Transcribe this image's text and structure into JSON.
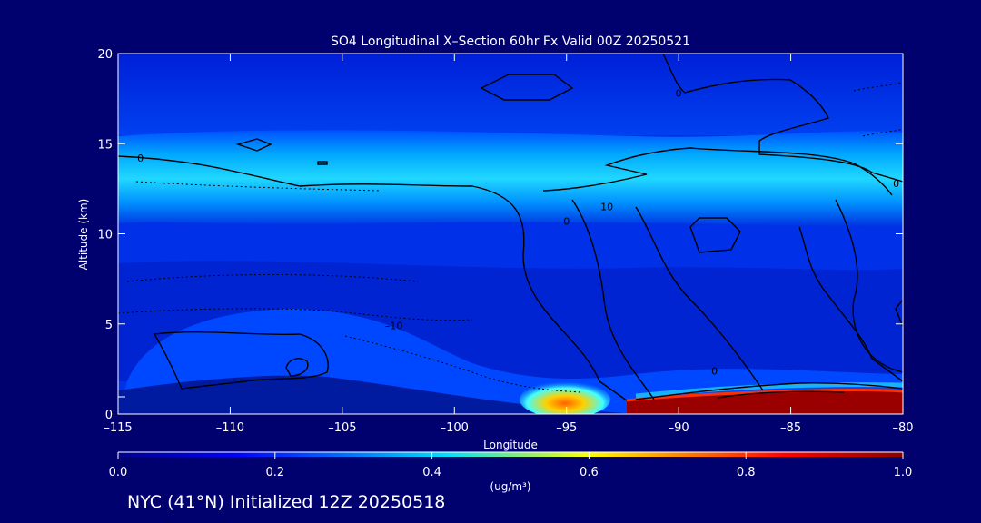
{
  "chart_data": {
    "type": "heatmap",
    "title": "SO4 Longitudinal X–Section 60hr  Fx Valid 00Z 20250521",
    "xlabel": "Longitude",
    "ylabel": "Altitude (km)",
    "xlim": [
      -115,
      -80
    ],
    "ylim": [
      0,
      20
    ],
    "x_ticks": [
      -115,
      -110,
      -105,
      -100,
      -95,
      -90,
      -85,
      -80
    ],
    "x_tick_labels": [
      "–115",
      "–110",
      "–105",
      "–100",
      "–95",
      "–90",
      "–85",
      "–80"
    ],
    "y_ticks": [
      0,
      5,
      10,
      15,
      20
    ],
    "y_tick_labels": [
      "0",
      "5",
      "10",
      "15",
      "20"
    ],
    "colorbar": {
      "min": 0.0,
      "max": 1.0,
      "ticks": [
        0.0,
        0.2,
        0.4,
        0.6,
        0.8,
        1.0
      ],
      "tick_labels": [
        "0.0",
        "0.2",
        "0.4",
        "0.6",
        "0.8",
        "1.0"
      ],
      "unit_label": "(ug/m³)",
      "colors": [
        "#00008c",
        "#0000ff",
        "#0078ff",
        "#00e0ff",
        "#ffff00",
        "#ff8000",
        "#ff0000",
        "#8c0000"
      ]
    },
    "so4_layers": [
      {
        "name": "upper-tropospheric band",
        "lon": [
          -115,
          -80
        ],
        "alt": [
          11.5,
          15.5
        ],
        "peak_alt": 13.5,
        "peak_value": 0.35
      },
      {
        "name": "surface plume",
        "lon": [
          -96,
          -93
        ],
        "alt": [
          0,
          1
        ],
        "peak_value": 0.7
      },
      {
        "name": "surface maximum",
        "lon": [
          -92.5,
          -80
        ],
        "alt": [
          0,
          1.3
        ],
        "peak_value": 1.0
      }
    ],
    "contour_labels": [
      {
        "text": "0",
        "lon": -114.0,
        "alt": 14.2
      },
      {
        "text": "0",
        "lon": -95.0,
        "alt": 10.7
      },
      {
        "text": "10",
        "lon": -93.2,
        "alt": 11.5
      },
      {
        "text": "0",
        "lon": -90.0,
        "alt": 17.8
      },
      {
        "text": "0",
        "lon": -80.3,
        "alt": 12.8
      },
      {
        "text": "–10",
        "lon": -102.7,
        "alt": 4.9
      },
      {
        "text": "0",
        "lon": -88.4,
        "alt": 2.4
      }
    ],
    "footer": "NYC (41°N) Initialized 12Z 20250518"
  }
}
